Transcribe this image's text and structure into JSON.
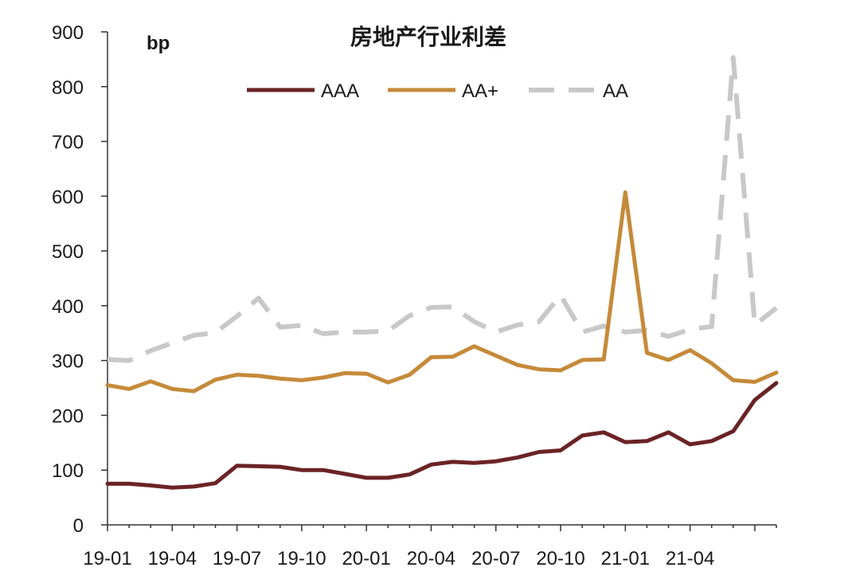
{
  "chart_data": {
    "type": "line",
    "title": "房地产行业利差",
    "ylabel": "bp",
    "xlabel": "",
    "ylim": [
      0,
      900
    ],
    "yticks": [
      0,
      100,
      200,
      300,
      400,
      500,
      600,
      700,
      800,
      900
    ],
    "x": [
      "19-01",
      "19-02",
      "19-03",
      "19-04",
      "19-05",
      "19-06",
      "19-07",
      "19-08",
      "19-09",
      "19-10",
      "19-11",
      "19-12",
      "20-01",
      "20-02",
      "20-03",
      "20-04",
      "20-05",
      "20-06",
      "20-07",
      "20-08",
      "20-09",
      "20-10",
      "20-11",
      "20-12",
      "21-01",
      "21-02",
      "21-03",
      "21-04",
      "21-05",
      "21-06",
      "21-07",
      "21-07b"
    ],
    "xtick_labels": [
      "19-01",
      "19-04",
      "19-07",
      "19-10",
      "20-01",
      "20-04",
      "20-07",
      "20-10",
      "21-01",
      "21-04"
    ],
    "legend": "top",
    "grid": false,
    "series": [
      {
        "name": "AAA",
        "color": "#6b2326",
        "dash": "solid",
        "values": [
          75,
          75,
          72,
          68,
          70,
          76,
          108,
          107,
          106,
          100,
          100,
          93,
          86,
          86,
          92,
          110,
          115,
          113,
          116,
          123,
          133,
          136,
          163,
          169,
          151,
          153,
          169,
          147,
          153,
          171,
          228,
          259
        ]
      },
      {
        "name": "AA+",
        "color": "#c58a3a",
        "dash": "solid",
        "values": [
          255,
          248,
          262,
          248,
          244,
          265,
          274,
          272,
          267,
          264,
          269,
          277,
          276,
          260,
          274,
          306,
          307,
          326,
          309,
          292,
          284,
          282,
          301,
          302,
          607,
          314,
          301,
          319,
          295,
          264,
          261,
          278
        ]
      },
      {
        "name": "AA",
        "color": "#c8c8c8",
        "dash": "dashed",
        "values": [
          302,
          300,
          318,
          332,
          346,
          351,
          381,
          414,
          361,
          364,
          349,
          352,
          352,
          354,
          382,
          397,
          398,
          371,
          352,
          365,
          371,
          419,
          352,
          363,
          352,
          355,
          344,
          357,
          362,
          853,
          365,
          396
        ]
      }
    ]
  }
}
